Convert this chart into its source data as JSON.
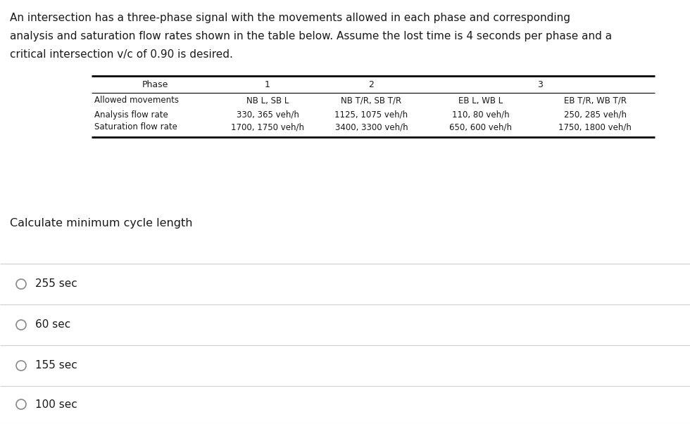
{
  "title_lines": [
    "An intersection has a three-phase signal with the movements allowed in each phase and corresponding",
    "analysis and saturation flow rates shown in the table below. Assume the lost time is 4 seconds per phase and a",
    "critical intersection v/c of 0.90 is desired."
  ],
  "table_header": [
    "Phase",
    "1",
    "2",
    "3"
  ],
  "table_rows": [
    [
      "Allowed movements",
      "NB L, SB L",
      "NB T/R, SB T/R",
      "EB L, WB L",
      "EB T/R, WB T/R"
    ],
    [
      "Analysis flow rate",
      "330, 365 veh/h",
      "1125, 1075 veh/h",
      "110, 80 veh/h",
      "250, 285 veh/h"
    ],
    [
      "Saturation flow rate",
      "1700, 1750 veh/h",
      "3400, 3300 veh/h",
      "650, 600 veh/h",
      "1750, 1800 veh/h"
    ]
  ],
  "question": "Calculate minimum cycle length",
  "options": [
    "255 sec",
    "60 sec",
    "155 sec",
    "100 sec"
  ],
  "bg_color": "#ffffff",
  "text_color": "#1a1a1a",
  "table_text_color": "#1a1a1a",
  "sep_color": "#d0d0d0",
  "circle_color": "#888888",
  "title_fontsize": 11.0,
  "table_header_fontsize": 9.0,
  "table_data_fontsize": 8.5,
  "question_fontsize": 11.5,
  "option_fontsize": 11.0
}
